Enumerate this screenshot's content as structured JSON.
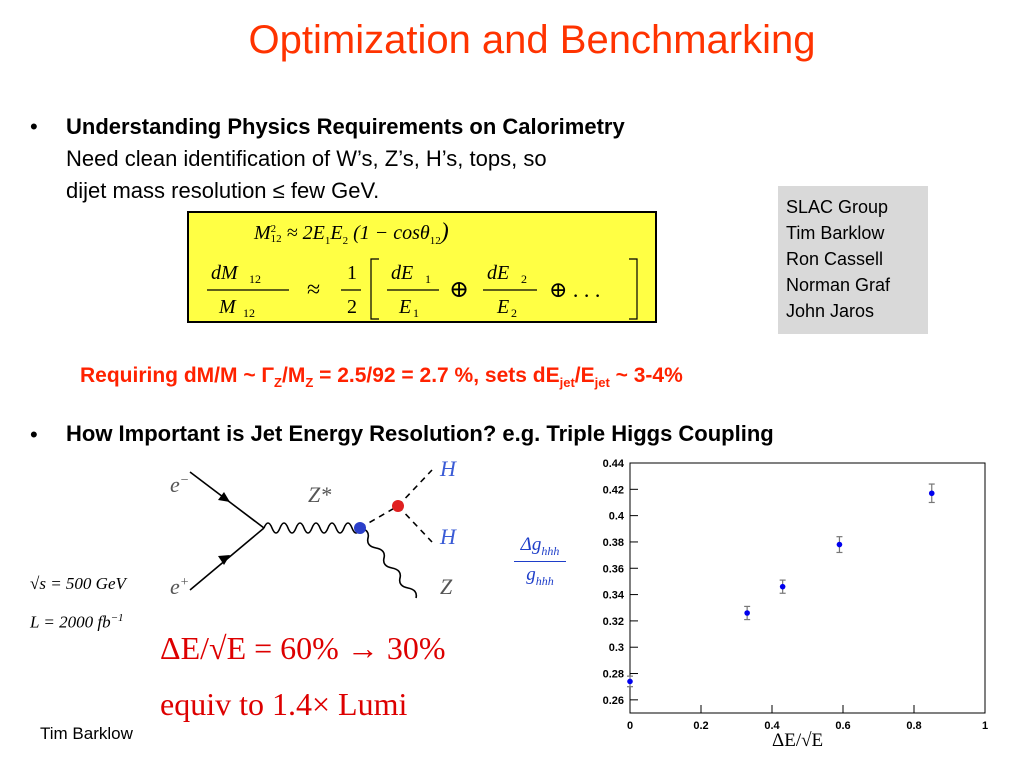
{
  "title": "Optimization and Benchmarking",
  "bullet_marker": "•",
  "bullet1": {
    "heading": "Understanding Physics Requirements on Calorimetry",
    "line2": "Need clean identification of W’s, Z’s, H’s, tops, so",
    "line3": "dijet mass resolution ≤ few GeV."
  },
  "formula": {
    "eq1": {
      "lhs": "M",
      "lhs_sup": "2",
      "lhs_sub": "12",
      "approx": "≈ 2E",
      "e1_sub": "1",
      "e2": "E",
      "e2_sub": "2",
      "rest": "(1 − cosθ",
      "theta_sub": "12",
      "close": ")"
    },
    "eq2": {
      "num_l": "dM",
      "num_l_sub": "12",
      "den_l": "M",
      "den_l_sub": "12",
      "approx": "≈",
      "half_num": "1",
      "half_den": "2",
      "f1_num": "dE",
      "f1_num_sub": "1",
      "f1_den": "E",
      "f1_den_sub": "1",
      "oplus": "⊕",
      "f2_num": "dE",
      "f2_num_sub": "2",
      "f2_den": "E",
      "f2_den_sub": "2",
      "dots": "⊕ . . ."
    }
  },
  "credits": [
    "SLAC Group",
    "Tim Barklow",
    "Ron Cassell",
    "Norman Graf",
    "John Jaros"
  ],
  "requirement": {
    "p1": "Requiring dM/M ~ Γ",
    "s1": "Z",
    "p2": "/M",
    "s2": "Z",
    "p3": " = 2.5/92 = 2.7 %, sets dE",
    "s3": "jet",
    "p4": "/E",
    "s4": "jet",
    "p5": " ~ 3-4%"
  },
  "bullet2": {
    "heading": "How Important is Jet Energy Resolution? e.g. Triple Higgs Coupling"
  },
  "feynman": {
    "e_minus": "e",
    "e_minus_sup": "−",
    "e_plus": "e",
    "e_plus_sup": "+",
    "zstar": "Z*",
    "h1": "H",
    "h2": "H",
    "z": "Z"
  },
  "params": {
    "sqrt_s": "√s = 500 GeV",
    "lumi": "L = 2000  fb",
    "lumi_sup": "−1"
  },
  "result": {
    "line1": "ΔE/√E = 60% → 30%",
    "line2": "equiv to  1.4×  Lumi"
  },
  "footer": "Tim Barklow",
  "chart_data": {
    "type": "scatter",
    "ylabel_num": "Δg",
    "ylabel_num_sub": "hhh",
    "ylabel_den": "g",
    "ylabel_den_sub": "hhh",
    "xlabel": "ΔE/√E",
    "xlim": [
      0,
      1
    ],
    "ylim": [
      0.25,
      0.44
    ],
    "xticks": [
      "0",
      "0.2",
      "0.4",
      "0.6",
      "0.8",
      "1"
    ],
    "yticks": [
      "0.26",
      "0.28",
      "0.3",
      "0.32",
      "0.34",
      "0.36",
      "0.38",
      "0.4",
      "0.42",
      "0.44"
    ],
    "points": [
      {
        "x": 0.0,
        "y": 0.274,
        "err": 0.004
      },
      {
        "x": 0.33,
        "y": 0.326,
        "err": 0.005
      },
      {
        "x": 0.43,
        "y": 0.346,
        "err": 0.005
      },
      {
        "x": 0.59,
        "y": 0.378,
        "err": 0.006
      },
      {
        "x": 0.85,
        "y": 0.417,
        "err": 0.007
      }
    ],
    "color": "#0000ee"
  }
}
